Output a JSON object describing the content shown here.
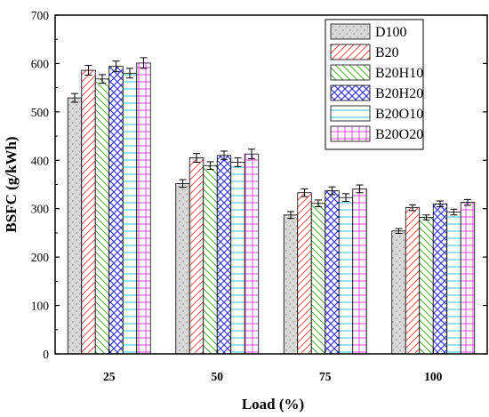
{
  "chart_data": {
    "type": "bar",
    "categories": [
      "25",
      "50",
      "75",
      "100"
    ],
    "xlabel": "Load (%)",
    "ylabel": "BSFC (g/kWh)",
    "ylim": [
      0,
      700
    ],
    "yticks": [
      0,
      100,
      200,
      300,
      400,
      500,
      600,
      700
    ],
    "grid": false,
    "legend_position": "top-right",
    "error_bars": true,
    "series": [
      {
        "name": "D100",
        "values": [
          529,
          352,
          287,
          254
        ],
        "errors": [
          9,
          8,
          7,
          5
        ],
        "color": "#888888",
        "pattern": "dots"
      },
      {
        "name": "B20",
        "values": [
          586,
          405,
          333,
          302
        ],
        "errors": [
          10,
          9,
          8,
          6
        ],
        "color": "#e8474a",
        "pattern": "diagonal-right"
      },
      {
        "name": "B20H10",
        "values": [
          568,
          389,
          311,
          282
        ],
        "errors": [
          9,
          8,
          7,
          5
        ],
        "color": "#3aa53a",
        "pattern": "diagonal-left"
      },
      {
        "name": "B20H20",
        "values": [
          594,
          410,
          337,
          310
        ],
        "errors": [
          11,
          9,
          8,
          6
        ],
        "color": "#3b3bd6",
        "pattern": "crosshatch"
      },
      {
        "name": "B20O10",
        "values": [
          580,
          396,
          323,
          293
        ],
        "errors": [
          10,
          9,
          8,
          6
        ],
        "color": "#2ec4d0",
        "pattern": "horizontal"
      },
      {
        "name": "B20O20",
        "values": [
          601,
          413,
          341,
          313
        ],
        "errors": [
          11,
          10,
          8,
          6
        ],
        "color": "#d84bd8",
        "pattern": "grid"
      }
    ]
  }
}
